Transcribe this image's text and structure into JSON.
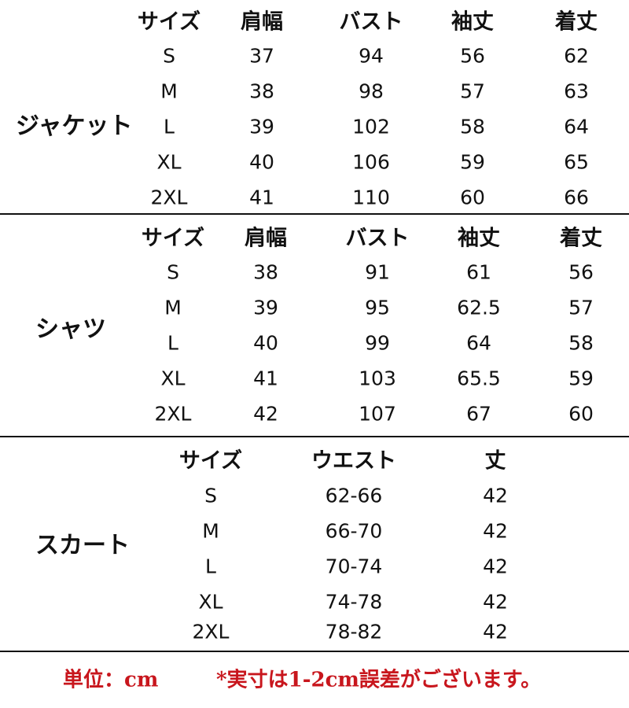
{
  "sections": [
    {
      "label": "ジャケット",
      "headers": [
        "サイズ",
        "肩幅",
        "バスト",
        "袖丈",
        "着丈"
      ],
      "rows": [
        [
          "S",
          "37",
          "94",
          "56",
          "62"
        ],
        [
          "M",
          "38",
          "98",
          "57",
          "63"
        ],
        [
          "L",
          "39",
          "102",
          "58",
          "64"
        ],
        [
          "XL",
          "40",
          "106",
          "59",
          "65"
        ],
        [
          "2XL",
          "41",
          "110",
          "60",
          "66"
        ]
      ]
    },
    {
      "label": "シャツ",
      "headers": [
        "サイズ",
        "肩幅",
        "バスト",
        "袖丈",
        "着丈"
      ],
      "rows": [
        [
          "S",
          "38",
          "91",
          "61",
          "56"
        ],
        [
          "M",
          "39",
          "95",
          "62.5",
          "57"
        ],
        [
          "L",
          "40",
          "99",
          "64",
          "58"
        ],
        [
          "XL",
          "41",
          "103",
          "65.5",
          "59"
        ],
        [
          "2XL",
          "42",
          "107",
          "67",
          "60"
        ]
      ]
    },
    {
      "label": "スカート",
      "headers": [
        "サイズ",
        "ウエスト",
        "丈"
      ],
      "rows": [
        [
          "S",
          "62-66",
          "42"
        ],
        [
          "M",
          "66-70",
          "42"
        ],
        [
          "L",
          "70-74",
          "42"
        ],
        [
          "XL",
          "74-78",
          "42"
        ],
        [
          "2XL",
          "78-82",
          "42"
        ]
      ]
    }
  ],
  "footer": {
    "unit": "単位：cm",
    "note": "*実寸は1-2cm誤差がございます。",
    "color": "#c8161d"
  }
}
